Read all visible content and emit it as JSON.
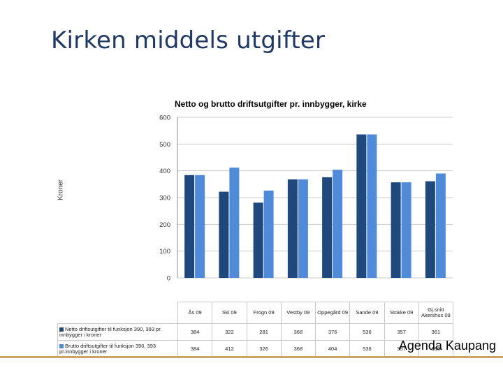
{
  "slide": {
    "title": "Kirken middels utgifter",
    "footer": "Agenda Kaupang"
  },
  "colors": {
    "title": "#1f3864",
    "series_dark": "#1f497d",
    "series_light": "#4f8bd9",
    "footer_line": "#c8a36a"
  },
  "chart_data": {
    "type": "bar",
    "title": "Netto og brutto driftsutgifter pr. innbygger, kirke",
    "ylabel": "Kroner",
    "xlabel": "",
    "ylim": [
      0,
      600
    ],
    "yticks": [
      0,
      100,
      200,
      300,
      400,
      500,
      600
    ],
    "grid": true,
    "categories": [
      "Ås 09",
      "Ski 09",
      "Frogn 09",
      "Vestby 09",
      "Oppegård 09",
      "Sande 09",
      "Stokke 09",
      "Gj.snitt Akershus 09"
    ],
    "series": [
      {
        "name": "Netto driftsutgifter til funksjon 390, 393 pr. innbygger i kroner",
        "values": [
          384,
          322,
          281,
          368,
          376,
          536,
          357,
          361
        ]
      },
      {
        "name": "Brutto driftsutgifter til funksjon 390, 393 pr.innbygger i kroner",
        "values": [
          384,
          412,
          326,
          368,
          404,
          536,
          357,
          390
        ]
      }
    ]
  }
}
